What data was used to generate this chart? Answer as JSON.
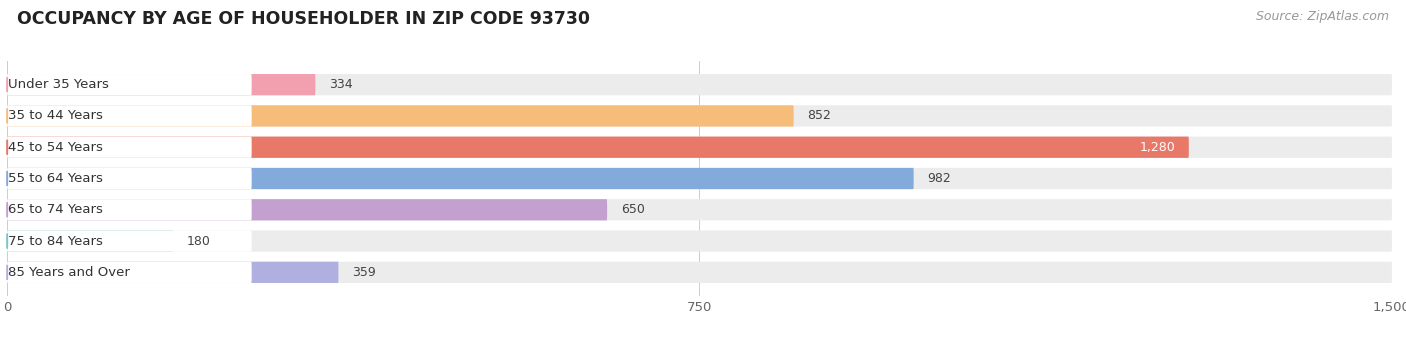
{
  "title": "OCCUPANCY BY AGE OF HOUSEHOLDER IN ZIP CODE 93730",
  "source": "Source: ZipAtlas.com",
  "categories": [
    "Under 35 Years",
    "35 to 44 Years",
    "45 to 54 Years",
    "55 to 64 Years",
    "65 to 74 Years",
    "75 to 84 Years",
    "85 Years and Over"
  ],
  "values": [
    334,
    852,
    1280,
    982,
    650,
    180,
    359
  ],
  "bar_colors": [
    "#f2a0b0",
    "#f5bc7a",
    "#e87868",
    "#82aada",
    "#c4a0d0",
    "#78c8c4",
    "#b0b0e0"
  ],
  "bg_bar_color": "#ececec",
  "label_bg_color": "#ffffff",
  "xlim": [
    0,
    1500
  ],
  "xticks": [
    0,
    750,
    1500
  ],
  "title_fontsize": 12.5,
  "label_fontsize": 9.5,
  "value_fontsize": 9.0,
  "source_fontsize": 9,
  "background_color": "#ffffff",
  "plot_bg_color": "#ffffff",
  "bar_height": 0.68,
  "bar_gap": 0.08
}
